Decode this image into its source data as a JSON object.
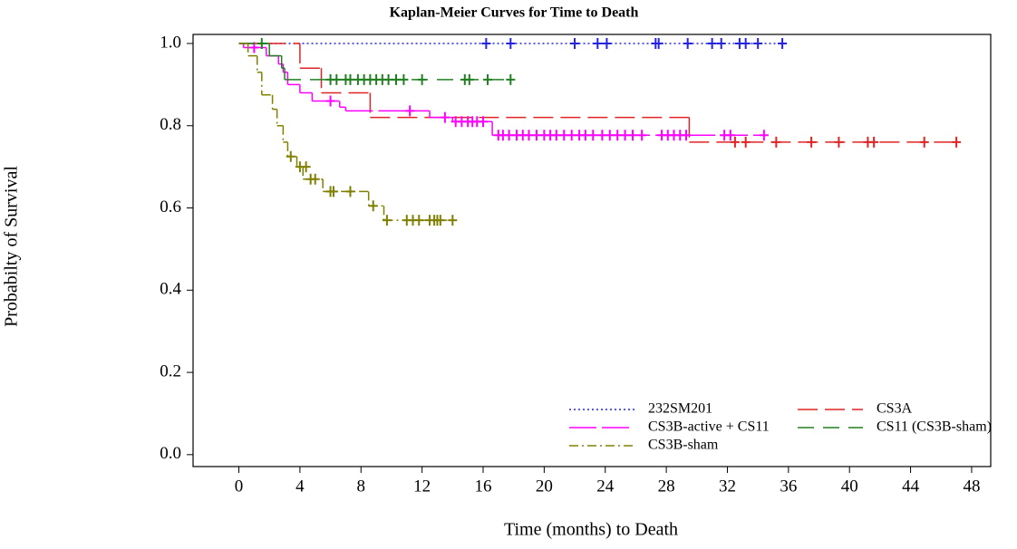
{
  "chart_data": {
    "type": "kaplan-meier",
    "title": "Kaplan-Meier Curves for Time to Death",
    "x_label": "Time (months) to Death",
    "y_label": "Probabilty of Survival",
    "xlim": [
      -3,
      49.25
    ],
    "ylim": [
      -0.029,
      1.022
    ],
    "xticks": [
      0,
      4,
      8,
      12,
      16,
      20,
      24,
      28,
      32,
      36,
      40,
      44,
      48
    ],
    "yticks": [
      {
        "value": 0,
        "label": "0.0"
      },
      0.2,
      0.4,
      0.6,
      0.8,
      {
        "value": 1,
        "label": "1.0"
      }
    ],
    "series": [
      {
        "name": "232SM201",
        "color": "#2424e0",
        "dash": "2,3",
        "x": [
          0,
          35.6
        ],
        "values": [
          1,
          1
        ],
        "censored": {
          "x": [
            16.2,
            17.8,
            22,
            23.5,
            24.1,
            27.3,
            27.5,
            29.4,
            31,
            31.6,
            32.8,
            33.2,
            34,
            35.6
          ],
          "values": [
            1,
            1,
            1,
            1,
            1,
            1,
            1,
            1,
            1,
            1,
            1,
            1,
            1,
            1
          ]
        }
      },
      {
        "name": "CS3A",
        "color": "#e02424",
        "dash": "22,8",
        "x": [
          0,
          4,
          5.4,
          8.6,
          29.5,
          47
        ],
        "values": [
          1,
          0.94,
          0.88,
          0.82,
          0.76,
          0.76
        ],
        "censored": {
          "x": [
            32.5,
            33.2,
            35.2,
            37.5,
            39.3,
            41.2,
            41.6,
            44.9,
            47
          ],
          "values": [
            0.76,
            0.76,
            0.76,
            0.76,
            0.76,
            0.76,
            0.76,
            0.76,
            0.76
          ]
        }
      },
      {
        "name": "CS3B-active + CS11",
        "color": "#ff00ff",
        "dash": "30,6",
        "x": [
          0,
          0.3,
          1.8,
          2.6,
          2.9,
          3.2,
          4,
          4.8,
          6.6,
          7,
          12.5,
          14,
          16.6,
          34.6
        ],
        "values": [
          1,
          0.99,
          0.97,
          0.95,
          0.93,
          0.9,
          0.88,
          0.86,
          0.845,
          0.836,
          0.82,
          0.81,
          0.777,
          0.777
        ],
        "censored": {
          "x": [
            1,
            6,
            11.2,
            13.5,
            14.2,
            14.6,
            15,
            15.3,
            15.6,
            16,
            17,
            17.3,
            17.7,
            18.2,
            18.6,
            19,
            19.5,
            20,
            20.4,
            20.8,
            21.3,
            21.8,
            22.3,
            22.7,
            23.2,
            23.8,
            24.3,
            24.8,
            25.3,
            25.8,
            26.4,
            27.7,
            28.1,
            28.5,
            28.9,
            29.3,
            31.8,
            32.2,
            34.4
          ],
          "values": [
            0.99,
            0.86,
            0.836,
            0.82,
            0.81,
            0.81,
            0.81,
            0.81,
            0.81,
            0.81,
            0.777,
            0.777,
            0.777,
            0.777,
            0.777,
            0.777,
            0.777,
            0.777,
            0.777,
            0.777,
            0.777,
            0.777,
            0.777,
            0.777,
            0.777,
            0.777,
            0.777,
            0.777,
            0.777,
            0.777,
            0.777,
            0.777,
            0.777,
            0.777,
            0.777,
            0.777,
            0.777,
            0.777,
            0.777
          ]
        }
      },
      {
        "name": "CS11 (CS3B-sham)",
        "color": "#208020",
        "dash": "18,10",
        "x": [
          0,
          2,
          2.8,
          3,
          17.8
        ],
        "values": [
          1,
          0.97,
          0.94,
          0.912,
          0.912
        ],
        "censored": {
          "x": [
            1.5,
            6,
            6.4,
            7,
            7.3,
            7.8,
            8.2,
            8.6,
            9,
            9.4,
            9.8,
            10.3,
            10.8,
            12,
            14.8,
            15.1,
            16.3,
            17.8
          ],
          "values": [
            1,
            0.912,
            0.912,
            0.912,
            0.912,
            0.912,
            0.912,
            0.912,
            0.912,
            0.912,
            0.912,
            0.912,
            0.912,
            0.912,
            0.912,
            0.912,
            0.912,
            0.912
          ]
        }
      },
      {
        "name": "CS3B-sham",
        "color": "#808000",
        "dash": "10,4,2,4",
        "x": [
          0,
          0.6,
          1.2,
          1.5,
          2.2,
          2.5,
          2.9,
          3.2,
          3.8,
          4.2,
          5.5,
          8.5,
          9.5,
          14
        ],
        "values": [
          1,
          0.97,
          0.93,
          0.875,
          0.84,
          0.8,
          0.76,
          0.725,
          0.7,
          0.67,
          0.64,
          0.605,
          0.57,
          0.57
        ],
        "censored": {
          "x": [
            3.4,
            4,
            4.4,
            4.7,
            5,
            6,
            6.2,
            7.3,
            8.8,
            9.7,
            11,
            11.4,
            11.8,
            12.5,
            12.8,
            13,
            13.2,
            14
          ],
          "values": [
            0.725,
            0.7,
            0.7,
            0.67,
            0.67,
            0.64,
            0.64,
            0.64,
            0.605,
            0.57,
            0.57,
            0.57,
            0.57,
            0.57,
            0.57,
            0.57,
            0.57,
            0.57
          ]
        }
      }
    ]
  }
}
